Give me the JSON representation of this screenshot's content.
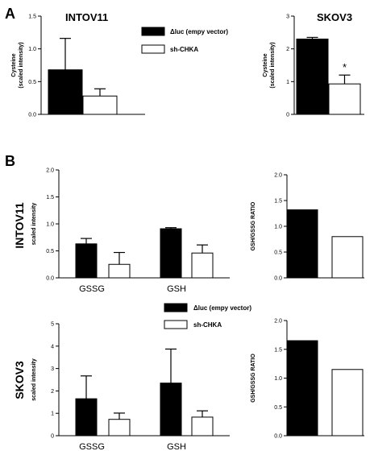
{
  "panels": [
    {
      "letter": "A"
    },
    {
      "letter": "B"
    }
  ],
  "row_labels": [
    "INTOV11",
    "SKOV3"
  ],
  "legend": {
    "items": [
      "Δluc (empy vector)",
      "sh-CHKA"
    ]
  },
  "colors": {
    "control": "#000000",
    "knockdown": "#ffffff",
    "stroke": "#000000"
  },
  "chart_data": [
    {
      "type": "bar",
      "title": "INTOV11",
      "ylabel": [
        "Cysteine",
        "(scaled intensity)"
      ],
      "ylim": [
        0,
        1.5
      ],
      "yticks": [
        "0.0",
        "0.5",
        "1.0",
        "1.5"
      ],
      "categories": [
        ""
      ],
      "series": [
        {
          "name": "Δluc (empy vector)",
          "values": [
            0.68
          ],
          "errors": [
            0.48
          ]
        },
        {
          "name": "sh-CHKA",
          "values": [
            0.28
          ],
          "errors": [
            0.11
          ]
        }
      ]
    },
    {
      "type": "bar",
      "title": "SKOV3",
      "ylabel": [
        "Cysteine",
        "(scaled intensity)"
      ],
      "ylim": [
        0,
        3
      ],
      "yticks": [
        "0",
        "1",
        "2",
        "3"
      ],
      "categories": [
        ""
      ],
      "series": [
        {
          "name": "Δluc (empy vector)",
          "values": [
            2.3
          ],
          "errors": [
            0.05
          ]
        },
        {
          "name": "sh-CHKA",
          "values": [
            0.93
          ],
          "errors": [
            0.27
          ]
        }
      ],
      "annotations": [
        {
          "text": "*"
        }
      ]
    },
    {
      "type": "bar",
      "ylabel": [
        "scaled intensity"
      ],
      "ylim": [
        0,
        2
      ],
      "yticks": [
        "0.0",
        "0.5",
        "1.0",
        "1.5",
        "2.0"
      ],
      "categories": [
        "GSSG",
        "GSH"
      ],
      "series": [
        {
          "name": "Δluc (empy vector)",
          "values": [
            0.63,
            0.91
          ],
          "errors": [
            0.1,
            0.02
          ]
        },
        {
          "name": "sh-CHKA",
          "values": [
            0.25,
            0.46
          ],
          "errors": [
            0.22,
            0.15
          ]
        }
      ]
    },
    {
      "type": "bar",
      "ylabel": [
        "GSH/GSSG RATIO"
      ],
      "ylim": [
        0,
        2
      ],
      "yticks": [
        "0.0",
        "0.5",
        "1.0",
        "1.5",
        "2.0"
      ],
      "categories": [
        ""
      ],
      "series": [
        {
          "name": "Δluc (empy vector)",
          "values": [
            1.32
          ],
          "errors": [
            0
          ]
        },
        {
          "name": "sh-CHKA",
          "values": [
            0.8
          ],
          "errors": [
            0
          ]
        }
      ]
    },
    {
      "type": "bar",
      "ylabel": [
        "scaled intensity"
      ],
      "ylim": [
        0,
        5
      ],
      "yticks": [
        "0",
        "1",
        "2",
        "3",
        "4",
        "5"
      ],
      "categories": [
        "GSSG",
        "GSH"
      ],
      "series": [
        {
          "name": "Δluc (empy vector)",
          "values": [
            1.65,
            2.35
          ],
          "errors": [
            1.02,
            1.52
          ]
        },
        {
          "name": "sh-CHKA",
          "values": [
            0.73,
            0.83
          ],
          "errors": [
            0.28,
            0.28
          ]
        }
      ]
    },
    {
      "type": "bar",
      "ylabel": [
        "GSH/GSSG RATIO"
      ],
      "ylim": [
        0,
        2
      ],
      "yticks": [
        "0.0",
        "0.5",
        "1.0",
        "1.5",
        "2.0"
      ],
      "categories": [
        ""
      ],
      "series": [
        {
          "name": "Δluc (empy vector)",
          "values": [
            1.65
          ],
          "errors": [
            0
          ]
        },
        {
          "name": "sh-CHKA",
          "values": [
            1.15
          ],
          "errors": [
            0
          ]
        }
      ]
    }
  ]
}
